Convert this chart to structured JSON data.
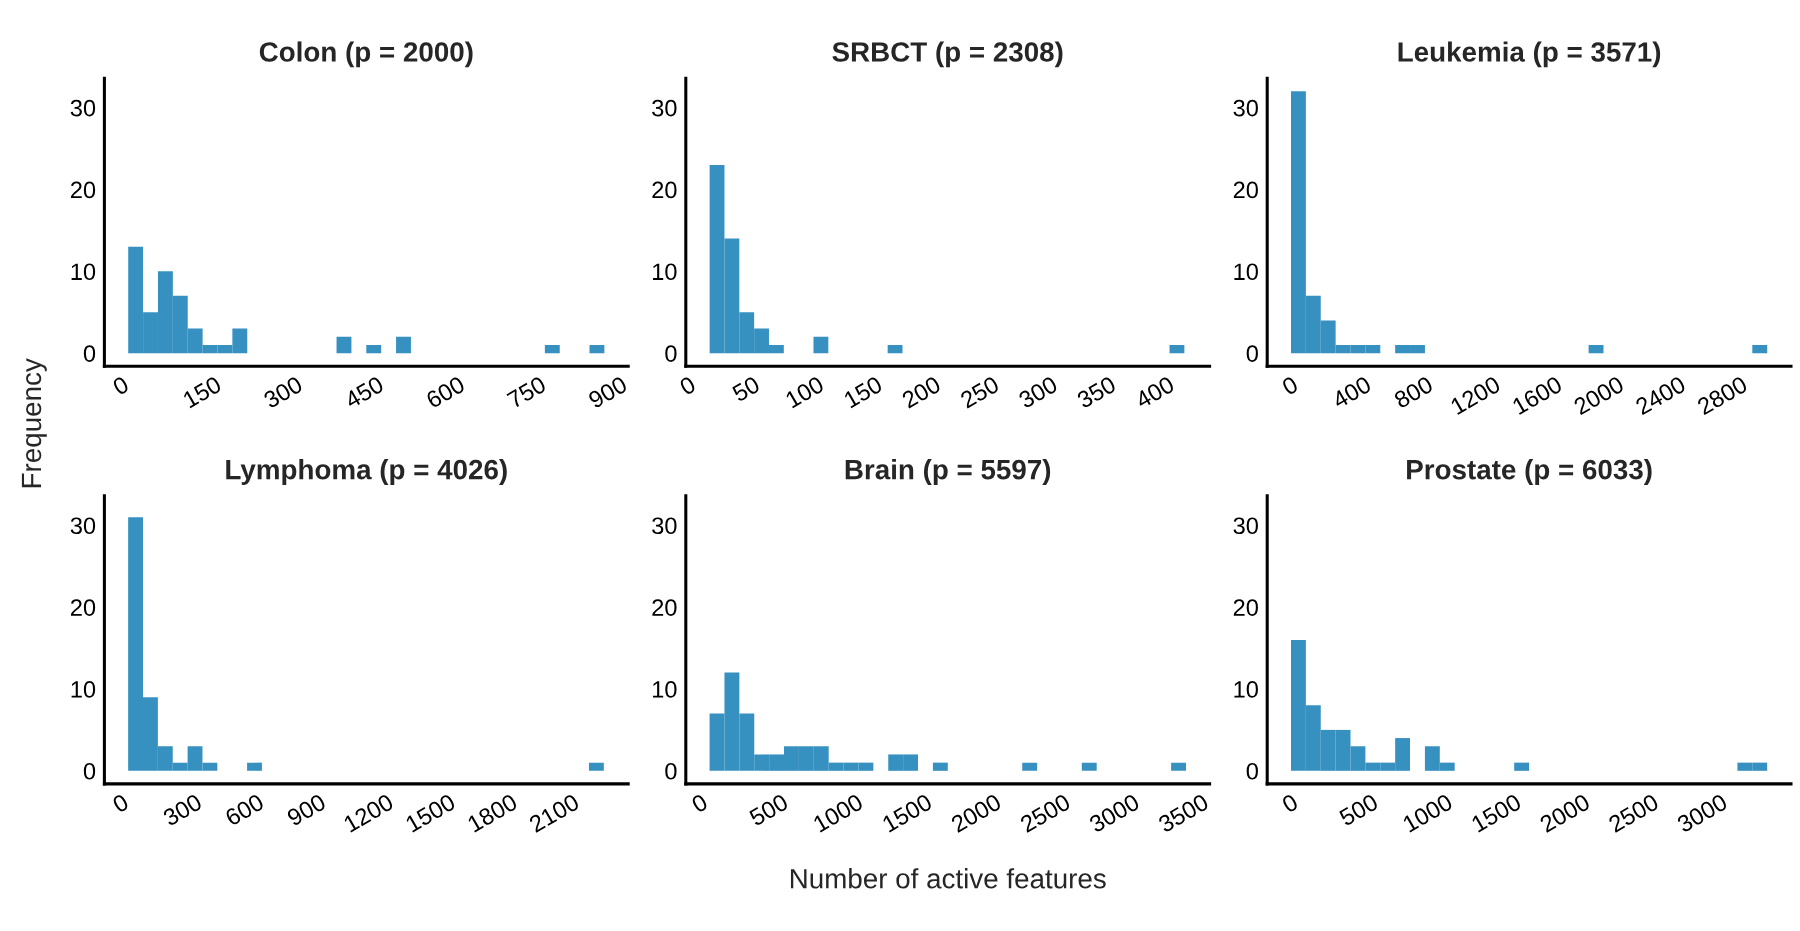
{
  "chart_data": [
    {
      "type": "histogram",
      "title": "Colon (p = 2000)",
      "color": "#3690c0",
      "bins": [
        12,
        39.5,
        67,
        94.5,
        122,
        149.5,
        177,
        204.5,
        232,
        259.5,
        287,
        314.5,
        342,
        369.5,
        397,
        424.5,
        452,
        479.5,
        507,
        534.5,
        562,
        589.5,
        617,
        644.5,
        672,
        699.5,
        727,
        754.5,
        782,
        809.5,
        837,
        864.5,
        892
      ],
      "values": [
        13,
        5,
        10,
        7,
        3,
        1,
        1,
        3,
        0,
        0,
        0,
        0,
        0,
        0,
        2,
        0,
        1,
        0,
        2,
        0,
        0,
        0,
        0,
        0,
        0,
        0,
        0,
        0,
        1,
        0,
        0,
        1
      ],
      "xlim": [
        -32,
        936
      ],
      "xticks": [
        0,
        150,
        300,
        450,
        600,
        750,
        900
      ],
      "ylim": [
        -1.6,
        33.6
      ],
      "yticks": [
        0,
        10,
        20,
        30
      ],
      "ylabel": "Frequency"
    },
    {
      "type": "histogram",
      "title": "SRBCT (p = 2308)",
      "color": "#3690c0",
      "bins": [
        18,
        30.7,
        43.4,
        56.1,
        68.8,
        81.5,
        94.2,
        106.9,
        119.6,
        132.3,
        145,
        157.7,
        170.4,
        183.1,
        195.8,
        208.5,
        221.2,
        233.9,
        246.6,
        259.3,
        272,
        284.7,
        297.4,
        310.1,
        322.8,
        335.5,
        348.2,
        360.9,
        373.6,
        386.3,
        399,
        411.7,
        424.4
      ],
      "values": [
        23,
        14,
        5,
        3,
        1,
        0,
        0,
        2,
        0,
        0,
        0,
        0,
        1,
        0,
        0,
        0,
        0,
        0,
        0,
        0,
        0,
        0,
        0,
        0,
        0,
        0,
        0,
        0,
        0,
        0,
        0,
        1
      ],
      "xlim": [
        -2.4,
        446
      ],
      "xticks": [
        0,
        50,
        100,
        150,
        200,
        250,
        300,
        350,
        400
      ],
      "ylim": [
        -1.6,
        33.6
      ],
      "yticks": [
        0,
        10,
        20,
        30
      ]
    },
    {
      "type": "histogram",
      "title": "Leukemia (p = 3571)",
      "color": "#3690c0",
      "bins": [
        0,
        96.4,
        192.8,
        289.2,
        385.6,
        482,
        578.4,
        674.8,
        771.2,
        867.6,
        964,
        1060.4,
        1156.8,
        1253.2,
        1349.6,
        1446,
        1542.4,
        1638.8,
        1735.2,
        1831.6,
        1928,
        2024.4,
        2120.8,
        2217.2,
        2313.6,
        2410,
        2506.4,
        2602.8,
        2699.2,
        2795.6,
        2892,
        2988.4,
        3084.8
      ],
      "values": [
        32,
        7,
        4,
        1,
        1,
        1,
        0,
        1,
        1,
        0,
        0,
        0,
        0,
        0,
        0,
        0,
        0,
        0,
        0,
        0,
        1,
        0,
        0,
        0,
        0,
        0,
        0,
        0,
        0,
        0,
        0,
        1
      ],
      "xlim": [
        -154,
        3239
      ],
      "xticks": [
        0,
        400,
        800,
        1200,
        1600,
        2000,
        2400,
        2800
      ],
      "ylim": [
        -1.6,
        33.6
      ],
      "yticks": [
        0,
        10,
        20,
        30
      ]
    },
    {
      "type": "histogram",
      "title": "Lymphoma (p = 4026)",
      "color": "#3690c0",
      "bins": [
        32,
        104,
        176,
        248,
        320,
        392,
        464,
        536,
        608,
        680,
        752,
        824,
        896,
        968,
        1040,
        1112,
        1184,
        1256,
        1328,
        1400,
        1472,
        1544,
        1616,
        1688,
        1760,
        1832,
        1904,
        1976,
        2048,
        2120,
        2192,
        2264,
        2336
      ],
      "values": [
        31,
        9,
        3,
        1,
        3,
        1,
        0,
        0,
        1,
        0,
        0,
        0,
        0,
        0,
        0,
        0,
        0,
        0,
        0,
        0,
        0,
        0,
        0,
        0,
        0,
        0,
        0,
        0,
        0,
        0,
        0,
        1
      ],
      "xlim": [
        -83,
        2454
      ],
      "xticks": [
        0,
        300,
        600,
        900,
        1200,
        1500,
        1800,
        2100
      ],
      "ylim": [
        -1.6,
        33.6
      ],
      "yticks": [
        0,
        10,
        20,
        30
      ]
    },
    {
      "type": "histogram",
      "title": "Brain (p = 5597)",
      "color": "#3690c0",
      "bins": [
        65,
        172.7,
        280.4,
        388.1,
        495.8,
        603.5,
        711.2,
        818.9,
        926.6,
        1034.3,
        1142,
        1249.7,
        1357.4,
        1465.1,
        1572.8,
        1680.5,
        1788.2,
        1895.9,
        2003.6,
        2111.3,
        2219,
        2326.7,
        2434.4,
        2542.1,
        2649.8,
        2757.5,
        2865.2,
        2972.9,
        3080.6,
        3188.3,
        3296,
        3403.7,
        3511.4
      ],
      "values": [
        7,
        12,
        7,
        2,
        2,
        3,
        3,
        3,
        1,
        1,
        1,
        0,
        2,
        2,
        0,
        1,
        0,
        0,
        0,
        0,
        0,
        1,
        0,
        0,
        0,
        1,
        0,
        0,
        0,
        0,
        0,
        1
      ],
      "xlim": [
        -107,
        3682
      ],
      "xticks": [
        0,
        500,
        1000,
        1500,
        2000,
        2500,
        3000,
        3500
      ],
      "ylim": [
        -1.6,
        33.6
      ],
      "yticks": [
        0,
        10,
        20,
        30
      ],
      "xlabel": "Number of active features"
    },
    {
      "type": "histogram",
      "title": "Prostate (p = 6033)",
      "color": "#3690c0",
      "bins": [
        0,
        108.3,
        216.6,
        324.9,
        433.2,
        541.5,
        649.8,
        758.1,
        866.4,
        974.7,
        1083,
        1191.3,
        1299.6,
        1407.9,
        1516.2,
        1624.5,
        1732.8,
        1841.1,
        1949.4,
        2057.7,
        2166,
        2274.3,
        2382.6,
        2490.9,
        2599.2,
        2707.5,
        2815.8,
        2924.1,
        3032.4,
        3140.7,
        3249,
        3357.3,
        3465.6
      ],
      "values": [
        16,
        8,
        5,
        5,
        3,
        1,
        1,
        4,
        0,
        3,
        1,
        0,
        0,
        0,
        0,
        1,
        0,
        0,
        0,
        0,
        0,
        0,
        0,
        0,
        0,
        0,
        0,
        0,
        0,
        0,
        1,
        1
      ],
      "xlim": [
        -173,
        3639
      ],
      "xticks": [
        0,
        500,
        1000,
        1500,
        2000,
        2500,
        3000
      ],
      "ylim": [
        -1.6,
        33.6
      ],
      "yticks": [
        0,
        10,
        20,
        30
      ]
    }
  ]
}
